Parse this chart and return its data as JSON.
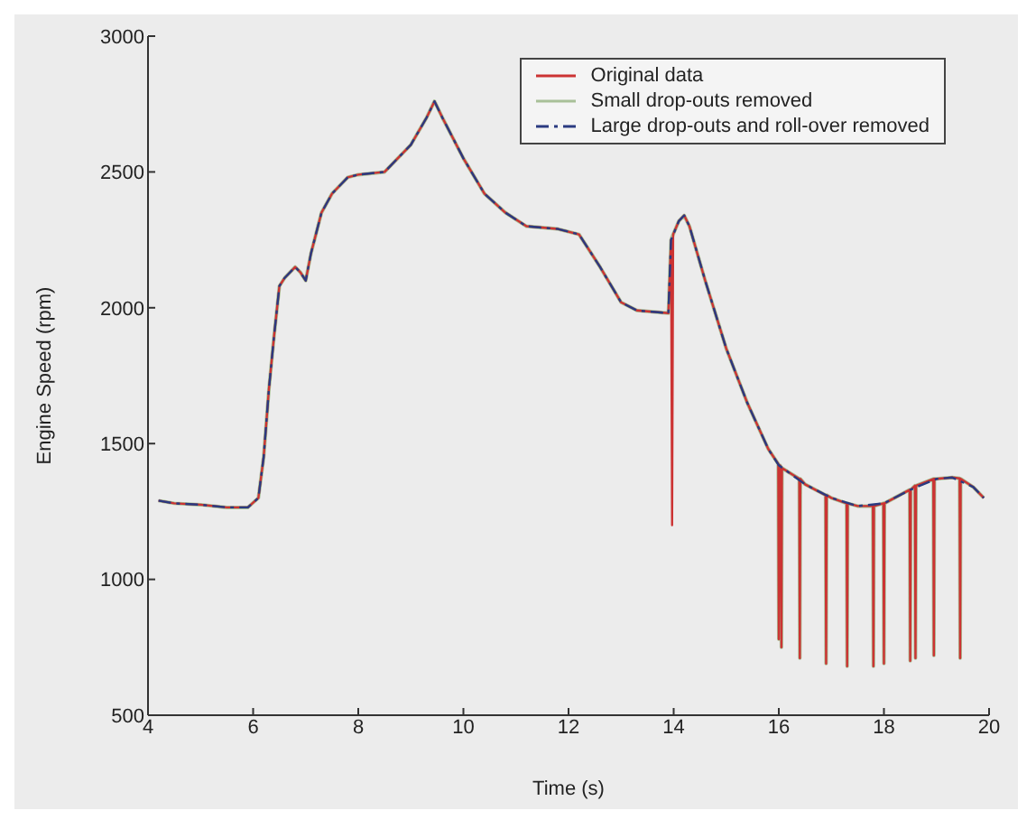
{
  "chart_data": {
    "type": "line",
    "xlabel": "Time (s)",
    "ylabel": "Engine Speed (rpm)",
    "xlim": [
      4,
      20
    ],
    "xticks": [
      4,
      6,
      8,
      10,
      12,
      14,
      16,
      18,
      20
    ],
    "ylim": [
      500,
      3000
    ],
    "yticks": [
      500,
      1000,
      1500,
      2000,
      2500,
      3000
    ],
    "grid": false,
    "legend": "top right",
    "marker": "none",
    "series": [
      {
        "name": "Original data",
        "color": "#cc3333",
        "line_style": "solid",
        "x": [
          4.2,
          4.5,
          5,
          5.5,
          5.9,
          6.1,
          6.2,
          6.3,
          6.4,
          6.5,
          6.6,
          6.8,
          6.9,
          7.0,
          7.1,
          7.3,
          7.5,
          7.8,
          8.0,
          8.5,
          9.0,
          9.3,
          9.45,
          9.6,
          10.0,
          10.4,
          10.8,
          11.2,
          11.8,
          12.2,
          12.6,
          13.0,
          13.3,
          13.6,
          13.9,
          13.95,
          13.97,
          13.99,
          14.1,
          14.2,
          14.3,
          14.6,
          15.0,
          15.4,
          15.8,
          15.99,
          16.0,
          16.02,
          16.04,
          16.05,
          16.06,
          16.39,
          16.4,
          16.41,
          16.5,
          16.89,
          16.9,
          16.91,
          17.0,
          17.29,
          17.3,
          17.31,
          17.5,
          17.79,
          17.8,
          17.81,
          17.99,
          18.0,
          18.01,
          18.49,
          18.5,
          18.51,
          18.59,
          18.6,
          18.61,
          18.94,
          18.95,
          18.96,
          19.0,
          19.3,
          19.44,
          19.45,
          19.46,
          19.7,
          19.9
        ],
        "values": [
          1290,
          1280,
          1275,
          1265,
          1265,
          1300,
          1450,
          1700,
          1900,
          2080,
          2110,
          2150,
          2130,
          2100,
          2200,
          2350,
          2420,
          2480,
          2490,
          2500,
          2600,
          2700,
          2760,
          2700,
          2550,
          2420,
          2350,
          2300,
          2290,
          2270,
          2150,
          2020,
          1990,
          1985,
          1980,
          2250,
          1200,
          2270,
          2320,
          2340,
          2300,
          2100,
          1850,
          1650,
          1480,
          1425,
          780,
          1420,
          1415,
          750,
          1410,
          1370,
          710,
          1370,
          1350,
          1310,
          690,
          1310,
          1300,
          1280,
          680,
          1280,
          1270,
          1270,
          680,
          1270,
          1280,
          690,
          1280,
          1330,
          700,
          1330,
          1345,
          710,
          1345,
          1370,
          720,
          1370,
          1370,
          1375,
          1372,
          710,
          1370,
          1340,
          1300
        ]
      },
      {
        "name": "Small drop-outs removed",
        "color": "#a8c098",
        "line_style": "solid",
        "x": [
          4.2,
          4.5,
          5,
          5.5,
          5.9,
          6.1,
          6.2,
          6.3,
          6.4,
          6.5,
          6.6,
          6.8,
          6.9,
          7.0,
          7.1,
          7.3,
          7.5,
          7.8,
          8.0,
          8.5,
          9.0,
          9.3,
          9.45,
          9.6,
          10.0,
          10.4,
          10.8,
          11.2,
          11.8,
          12.2,
          12.6,
          13.0,
          13.3,
          13.6,
          13.9,
          13.95,
          13.99,
          14.1,
          14.2,
          14.3,
          14.6,
          15.0,
          15.4,
          15.8,
          15.99,
          16.0,
          16.02,
          16.04,
          16.05,
          16.06,
          16.39,
          16.4,
          16.41,
          16.5,
          16.89,
          16.9,
          16.91,
          17.0,
          17.29,
          17.3,
          17.31,
          17.5,
          17.79,
          17.8,
          17.81,
          17.99,
          18.0,
          18.01,
          18.49,
          18.5,
          18.51,
          18.59,
          18.6,
          18.61,
          18.94,
          18.95,
          18.96,
          19.0,
          19.3,
          19.44,
          19.45,
          19.46,
          19.7,
          19.9
        ],
        "values": [
          1290,
          1280,
          1275,
          1265,
          1265,
          1300,
          1450,
          1700,
          1900,
          2080,
          2110,
          2150,
          2130,
          2100,
          2200,
          2350,
          2420,
          2480,
          2490,
          2500,
          2600,
          2700,
          2760,
          2700,
          2550,
          2420,
          2350,
          2300,
          2290,
          2270,
          2150,
          2020,
          1990,
          1985,
          1980,
          2250,
          2270,
          2320,
          2340,
          2300,
          2100,
          1850,
          1650,
          1480,
          1425,
          780,
          1420,
          1415,
          750,
          1410,
          1370,
          710,
          1370,
          1350,
          1310,
          690,
          1310,
          1300,
          1280,
          680,
          1280,
          1270,
          1270,
          680,
          1270,
          1280,
          690,
          1280,
          1330,
          700,
          1330,
          1345,
          710,
          1345,
          1370,
          720,
          1370,
          1370,
          1375,
          1372,
          710,
          1370,
          1340,
          1300
        ]
      },
      {
        "name": "Large drop-outs and roll-over removed",
        "color": "#2a3a80",
        "line_style": "dashed",
        "x": [
          4.2,
          4.5,
          5,
          5.5,
          5.9,
          6.1,
          6.2,
          6.3,
          6.4,
          6.5,
          6.6,
          6.8,
          6.9,
          7.0,
          7.1,
          7.3,
          7.5,
          7.8,
          8.0,
          8.5,
          9.0,
          9.3,
          9.45,
          9.6,
          10.0,
          10.4,
          10.8,
          11.2,
          11.8,
          12.2,
          12.6,
          13.0,
          13.3,
          13.6,
          13.9,
          13.95,
          14.1,
          14.2,
          14.3,
          14.6,
          15.0,
          15.4,
          15.8,
          16.0,
          16.5,
          17.0,
          17.5,
          18.0,
          18.5,
          19.0,
          19.3,
          19.7,
          19.9
        ],
        "values": [
          1290,
          1280,
          1275,
          1265,
          1265,
          1300,
          1450,
          1700,
          1900,
          2080,
          2110,
          2150,
          2130,
          2100,
          2200,
          2350,
          2420,
          2480,
          2490,
          2500,
          2600,
          2700,
          2760,
          2700,
          2550,
          2420,
          2350,
          2300,
          2290,
          2270,
          2150,
          2020,
          1990,
          1985,
          1980,
          2250,
          2320,
          2340,
          2300,
          2100,
          1850,
          1650,
          1480,
          1420,
          1350,
          1300,
          1270,
          1280,
          1330,
          1370,
          1375,
          1340,
          1300
        ]
      }
    ]
  }
}
